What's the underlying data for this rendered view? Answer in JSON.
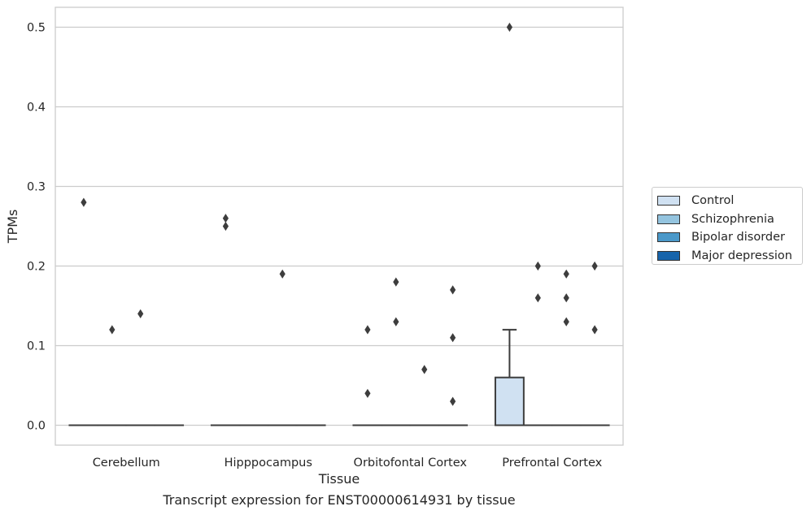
{
  "caption": "Transcript expression for ENST00000614931 by tissue",
  "chart_data": {
    "type": "box",
    "title": "",
    "xlabel": "Tissue",
    "ylabel": "TPMs",
    "ylim": [
      -0.025,
      0.525
    ],
    "yticks": [
      "0.0",
      "0.1",
      "0.2",
      "0.3",
      "0.4",
      "0.5"
    ],
    "ytick_values": [
      0.0,
      0.1,
      0.2,
      0.3,
      0.4,
      0.5
    ],
    "grid": true,
    "legend_position": "right",
    "categories": [
      "Cerebellum",
      "Hipppocampus",
      "Orbitofontal Cortex",
      "Prefrontal Cortex"
    ],
    "series": [
      {
        "name": "Control",
        "color": "#d0e1f2",
        "boxes": [
          {
            "q1": 0,
            "median": 0,
            "q3": 0,
            "whisker_low": 0,
            "whisker_high": 0,
            "outliers": [
              0.28
            ]
          },
          {
            "q1": 0,
            "median": 0,
            "q3": 0,
            "whisker_low": 0,
            "whisker_high": 0,
            "outliers": [
              0.26,
              0.25
            ]
          },
          {
            "q1": 0,
            "median": 0,
            "q3": 0,
            "whisker_low": 0,
            "whisker_high": 0,
            "outliers": [
              0.12,
              0.04
            ]
          },
          {
            "q1": 0,
            "median": 0,
            "q3": 0.06,
            "whisker_low": 0,
            "whisker_high": 0.12,
            "outliers": [
              0.5
            ]
          }
        ]
      },
      {
        "name": "Schizophrenia",
        "color": "#94c4df",
        "boxes": [
          {
            "q1": 0,
            "median": 0,
            "q3": 0,
            "whisker_low": 0,
            "whisker_high": 0,
            "outliers": [
              0.12
            ]
          },
          {
            "q1": 0,
            "median": 0,
            "q3": 0,
            "whisker_low": 0,
            "whisker_high": 0,
            "outliers": []
          },
          {
            "q1": 0,
            "median": 0,
            "q3": 0,
            "whisker_low": 0,
            "whisker_high": 0,
            "outliers": [
              0.18,
              0.13
            ]
          },
          {
            "q1": 0,
            "median": 0,
            "q3": 0,
            "whisker_low": 0,
            "whisker_high": 0,
            "outliers": [
              0.2,
              0.16
            ]
          }
        ]
      },
      {
        "name": "Bipolar disorder",
        "color": "#4a98c9",
        "boxes": [
          {
            "q1": 0,
            "median": 0,
            "q3": 0,
            "whisker_low": 0,
            "whisker_high": 0,
            "outliers": [
              0.14
            ]
          },
          {
            "q1": 0,
            "median": 0,
            "q3": 0,
            "whisker_low": 0,
            "whisker_high": 0,
            "outliers": [
              0.19
            ]
          },
          {
            "q1": 0,
            "median": 0,
            "q3": 0,
            "whisker_low": 0,
            "whisker_high": 0,
            "outliers": [
              0.07
            ]
          },
          {
            "q1": 0,
            "median": 0,
            "q3": 0,
            "whisker_low": 0,
            "whisker_high": 0,
            "outliers": [
              0.19,
              0.16,
              0.13
            ]
          }
        ]
      },
      {
        "name": "Major depression",
        "color": "#1764ab",
        "boxes": [
          {
            "q1": 0,
            "median": 0,
            "q3": 0,
            "whisker_low": 0,
            "whisker_high": 0,
            "outliers": []
          },
          {
            "q1": 0,
            "median": 0,
            "q3": 0,
            "whisker_low": 0,
            "whisker_high": 0,
            "outliers": []
          },
          {
            "q1": 0,
            "median": 0,
            "q3": 0,
            "whisker_low": 0,
            "whisker_high": 0,
            "outliers": [
              0.17,
              0.11,
              0.03
            ]
          },
          {
            "q1": 0,
            "median": 0,
            "q3": 0,
            "whisker_low": 0,
            "whisker_high": 0,
            "outliers": [
              0.2,
              0.12
            ]
          }
        ]
      }
    ]
  }
}
